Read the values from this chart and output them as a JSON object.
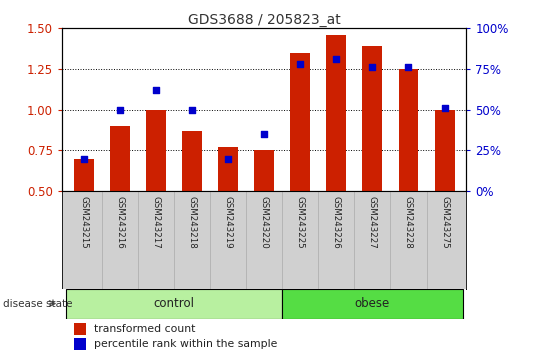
{
  "title": "GDS3688 / 205823_at",
  "samples": [
    "GSM243215",
    "GSM243216",
    "GSM243217",
    "GSM243218",
    "GSM243219",
    "GSM243220",
    "GSM243225",
    "GSM243226",
    "GSM243227",
    "GSM243228",
    "GSM243275"
  ],
  "red_bars": [
    0.7,
    0.9,
    1.0,
    0.87,
    0.77,
    0.75,
    1.35,
    1.46,
    1.39,
    1.25,
    1.0
  ],
  "blue_percentile": [
    20,
    50,
    62,
    50,
    20,
    35,
    78,
    81,
    76,
    76,
    51
  ],
  "ylim_left": [
    0.5,
    1.5
  ],
  "ylim_right": [
    0,
    100
  ],
  "yticks_left": [
    0.5,
    0.75,
    1.0,
    1.25,
    1.5
  ],
  "yticks_right": [
    0,
    25,
    50,
    75,
    100
  ],
  "ytick_labels_right": [
    "0%",
    "25%",
    "50%",
    "75%",
    "100%"
  ],
  "n_control": 6,
  "n_obese": 5,
  "control_color": "#b8f0a0",
  "obese_color": "#55dd44",
  "bar_color": "#cc2000",
  "dot_color": "#0000cc",
  "bar_width": 0.55,
  "tick_color_left": "#cc2000",
  "tick_color_right": "#0000cc",
  "legend_bar_label": "transformed count",
  "legend_dot_label": "percentile rank within the sample",
  "disease_state_label": "disease state",
  "control_label": "control",
  "obese_label": "obese",
  "grid_linestyle": "dotted",
  "grid_color": "#000000",
  "grid_lw": 0.7
}
